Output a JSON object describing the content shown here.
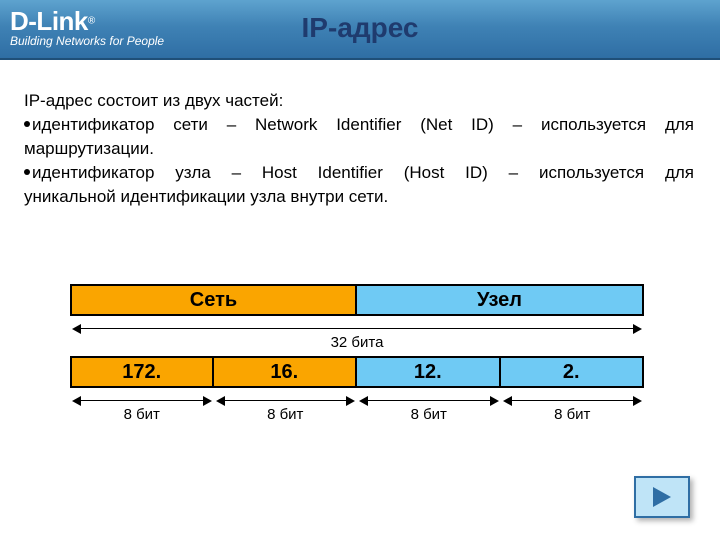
{
  "header": {
    "logo_main": "D-Link",
    "logo_reg": "®",
    "logo_sub": "Building Networks for People",
    "title": "IP-адрес"
  },
  "body": {
    "intro": "IP-адрес состоит из двух частей:",
    "bullet1_l1": "идентификатор сети – Network Identifier (Net ID) – используется для",
    "bullet1_l2": "маршрутизации.",
    "bullet2_l1": "идентификатор узла – Host Identifier (Host ID) – используется для",
    "bullet2_l2": "уникальной идентификации узла внутри сети."
  },
  "diagram": {
    "row1": {
      "net_label": "Сеть",
      "host_label": "Узел"
    },
    "total_bits_label": "32 бита",
    "octets": [
      "172.",
      "16.",
      "12.",
      "2."
    ],
    "octet_bits_label": "8 бит",
    "colors": {
      "net_bg": "#faa500",
      "host_bg": "#6fcaf4",
      "border": "#000000"
    }
  },
  "nav": {
    "next_icon": "arrow-right"
  }
}
